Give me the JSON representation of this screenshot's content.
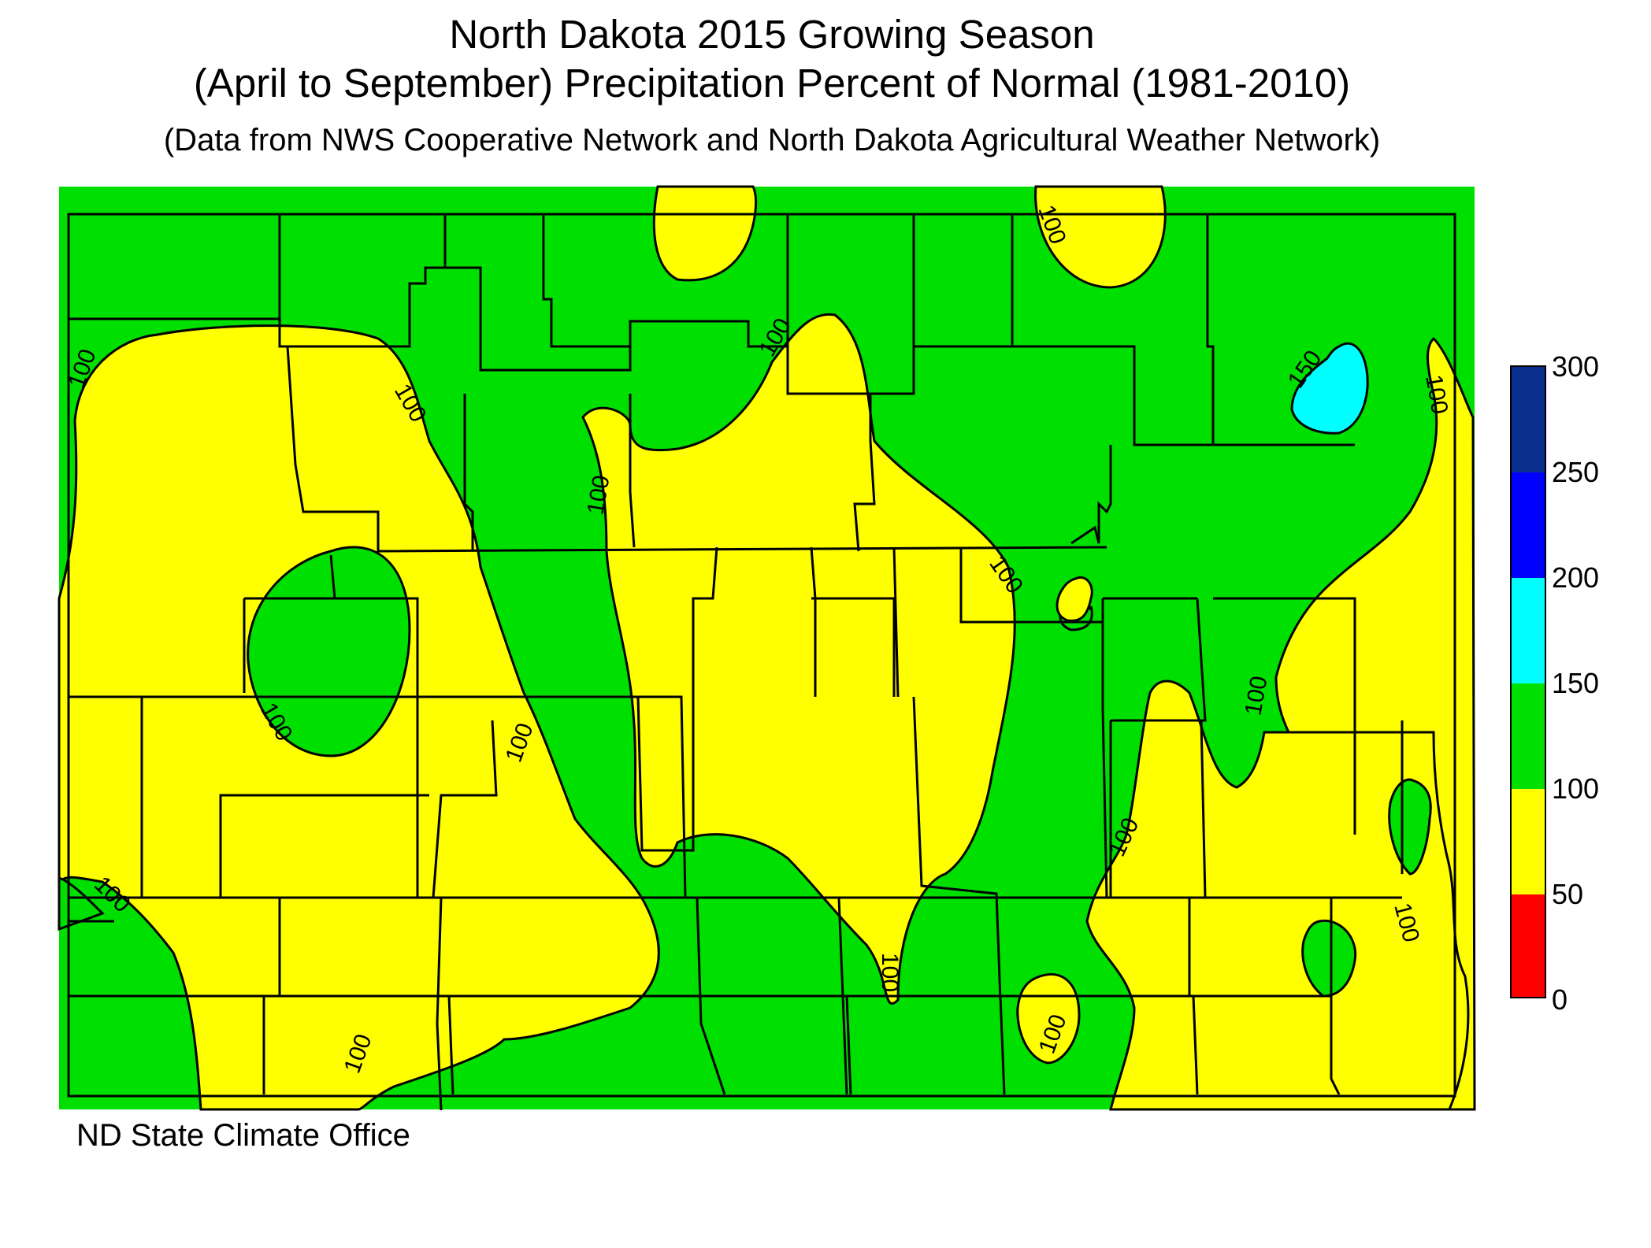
{
  "title_line1": "North Dakota 2015 Growing Season",
  "title_line2": "(April to September) Precipitation Percent of Normal (1981-2010)",
  "subtitle": "(Data from NWS Cooperative Network and North Dakota Agricultural Weather Network)",
  "credit": "ND State Climate Office",
  "contour_labels": [
    "100",
    "150"
  ],
  "legend": {
    "ticks": [
      "300",
      "250",
      "200",
      "150",
      "100",
      "50",
      "0"
    ],
    "bins": [
      {
        "range": "250-300",
        "color": "#0a2e8c"
      },
      {
        "range": "200-250",
        "color": "#0000ff"
      },
      {
        "range": "150-200",
        "color": "#00ffff"
      },
      {
        "range": "100-150",
        "color": "#00e000"
      },
      {
        "range": "50-100",
        "color": "#ffff00"
      },
      {
        "range": "0-50",
        "color": "#ff0000"
      }
    ]
  },
  "colors": {
    "background_field": "#00e000",
    "yellow": "#ffff00",
    "cyan": "#00ffff",
    "outline": "#000000"
  }
}
